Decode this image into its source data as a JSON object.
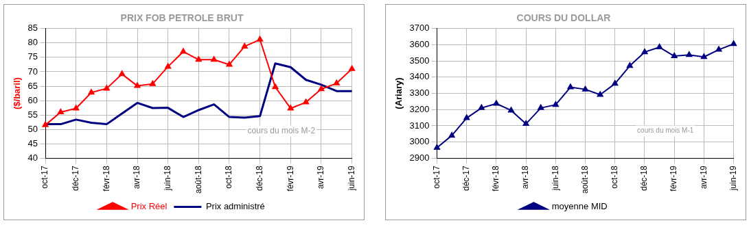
{
  "chart_data": [
    {
      "type": "line",
      "title": "PRIX FOB PETROLE BRUT",
      "ylabel": "($/baril)",
      "categories": [
        "oct-17",
        null,
        "déc-17",
        null,
        "févr-18",
        null,
        "avr-18",
        null,
        "juin-18",
        null,
        "août-18",
        null,
        "oct-18",
        null,
        "déc-18",
        null,
        "févr-19",
        null,
        "avr-19",
        null,
        "juin-19"
      ],
      "series": [
        {
          "name": "Prix Réel",
          "color": "#ff0000",
          "marker": "triangle",
          "values": [
            51.5,
            56,
            57.3,
            62.8,
            64.2,
            69.2,
            65.1,
            65.8,
            71.8,
            77,
            74.2,
            74.2,
            72.5,
            78.8,
            81.2,
            64.7,
            57.3,
            59.4,
            64.0,
            66.0,
            71.0
          ]
        },
        {
          "name": "Prix administré",
          "color": "#000080",
          "marker": "none",
          "values": [
            51.8,
            51.8,
            53.4,
            52.3,
            51.8,
            55.5,
            59.2,
            57.4,
            57.5,
            54.3,
            56.7,
            58.7,
            54.3,
            54.1,
            54.6,
            72.9,
            71.6,
            67.2,
            65.5,
            63.3,
            63.3
          ]
        }
      ],
      "ylim": [
        40,
        85
      ],
      "yticks": [
        40,
        45,
        50,
        55,
        60,
        65,
        70,
        75,
        80,
        85
      ],
      "grid": true,
      "legend": "bottom",
      "annotations": [
        "cours du mois M-2"
      ]
    },
    {
      "type": "line",
      "title": "COURS DU DOLLAR",
      "ylabel": "(Ariary)",
      "categories": [
        "oct-17",
        null,
        "déc-17",
        null,
        "févr-18",
        null,
        "avr-18",
        null,
        "juin-18",
        null,
        "août-18",
        null,
        "oct-18",
        null,
        "déc-18",
        null,
        "févr-19",
        null,
        "avr-19",
        null,
        "juin-19"
      ],
      "series": [
        {
          "name": "moyenne MID",
          "color": "#000080",
          "marker": "triangle",
          "values": [
            2965,
            3040,
            3148,
            3210,
            3237,
            3195,
            3112,
            3210,
            3230,
            3338,
            3325,
            3292,
            3360,
            3470,
            3555,
            3585,
            3530,
            3538,
            3525,
            3570,
            3605
          ]
        }
      ],
      "ylim": [
        2900,
        3700
      ],
      "yticks": [
        2900,
        3000,
        3100,
        3200,
        3300,
        3400,
        3500,
        3600,
        3700
      ],
      "grid": true,
      "legend": "bottom",
      "annotations": [
        "cours du mois M-1"
      ]
    }
  ]
}
